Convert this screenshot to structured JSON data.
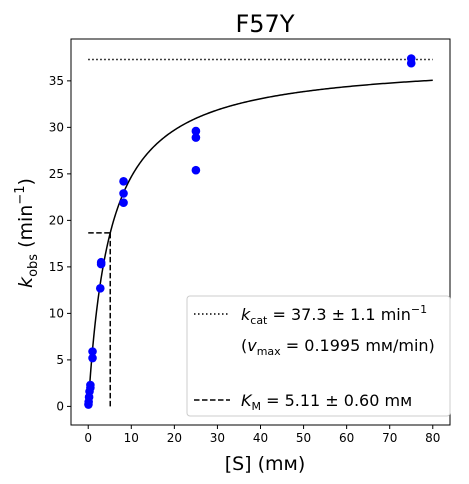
{
  "chart_data": {
    "type": "scatter",
    "title": "F57Y",
    "xlabel": "[S] (mм)",
    "ylabel_main": "k",
    "ylabel_sub": "obs",
    "ylabel_unit_open": " (min",
    "ylabel_unit_sup": "−1",
    "ylabel_unit_close": ")",
    "xlim": [
      -4,
      84
    ],
    "ylim": [
      -2,
      39.5
    ],
    "xticks": [
      0,
      10,
      20,
      30,
      40,
      50,
      60,
      70,
      80
    ],
    "yticks": [
      0,
      5,
      10,
      15,
      20,
      25,
      30,
      35
    ],
    "grid": false,
    "legend_position": "lower-right",
    "points": {
      "color": "#0000ff",
      "x": [
        0.05,
        0.1,
        0.2,
        0.3,
        0.5,
        0.5,
        1.0,
        1.0,
        2.8,
        3.0,
        3.0,
        8.2,
        8.2,
        8.2,
        25.0,
        25.0,
        25.0,
        75.0,
        75.0
      ],
      "y": [
        0.2,
        0.5,
        1.0,
        1.6,
        2.0,
        2.3,
        5.2,
        5.9,
        12.7,
        15.3,
        15.5,
        21.9,
        22.9,
        24.2,
        25.4,
        28.9,
        29.6,
        36.9,
        37.4
      ]
    },
    "fit_curve": {
      "kcat": 37.3,
      "km": 5.11,
      "x_range": [
        0,
        80
      ]
    },
    "kcat_line": {
      "y": 37.3,
      "x_range": [
        0,
        80
      ]
    },
    "km_lines": {
      "x": 5.11,
      "y": 18.65,
      "x_start": 0
    },
    "legend": {
      "kcat_sym": "k",
      "kcat_sub": "cat",
      "kcat_value": " = 37.3 ± 1.1 min",
      "kcat_sup": "−1",
      "vmax_open": "(",
      "vmax_sym": "v",
      "vmax_sub": "max",
      "vmax_value": " = 0.1995 mм/min)",
      "km_sym": "K",
      "km_sub": "M",
      "km_value": " = 5.11 ± 0.60 mм"
    }
  }
}
